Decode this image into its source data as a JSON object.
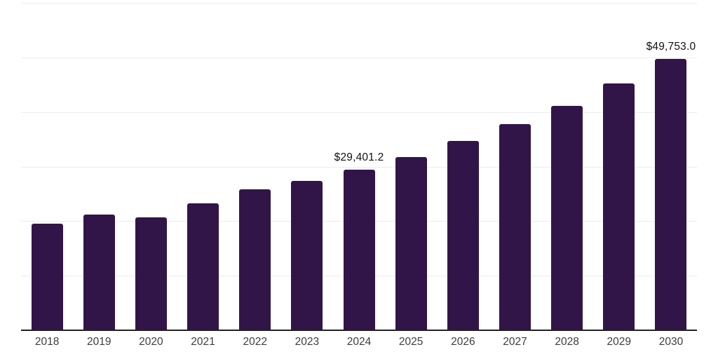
{
  "chart_data": {
    "type": "bar",
    "title": "",
    "xlabel": "",
    "ylabel": "",
    "categories": [
      "2018",
      "2019",
      "2020",
      "2021",
      "2022",
      "2023",
      "2024",
      "2025",
      "2026",
      "2027",
      "2028",
      "2029",
      "2030"
    ],
    "values": [
      19500,
      21200,
      20700,
      23300,
      25800,
      27400,
      29401.2,
      31800,
      34700,
      37800,
      41100,
      45200,
      49753.0
    ],
    "labeled_points": [
      {
        "category": "2024",
        "label": "$29,401.2"
      },
      {
        "category": "2030",
        "label": "$49,753.0"
      }
    ],
    "ylim": [
      0,
      60000
    ],
    "gridline_interval": 10000,
    "grid": true,
    "legend": "none",
    "bar_color": "#321548",
    "gridline_color": "#ededed",
    "axis_color": "#222222",
    "tick_label_color": "#3d3d3d",
    "value_label_color": "#111111",
    "background_color": "#ffffff"
  }
}
